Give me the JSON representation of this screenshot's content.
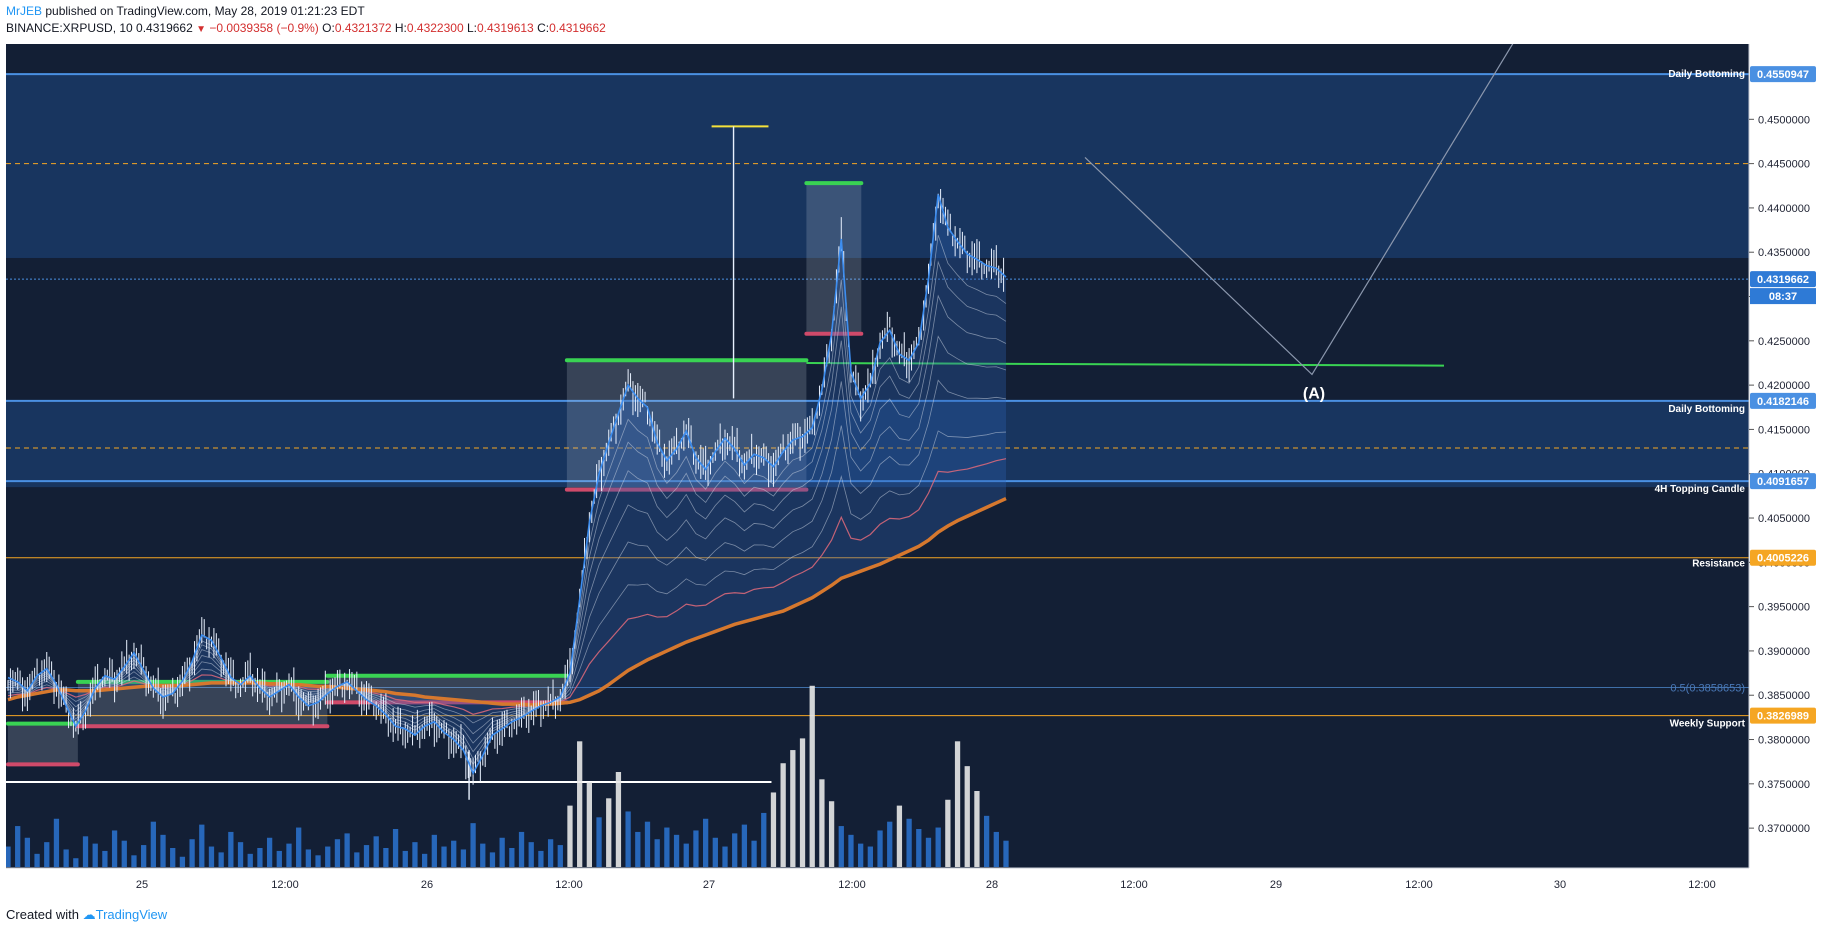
{
  "header": {
    "author": "MrJEB",
    "published": "published on TradingView.com, May 28, 2019 01:21:23 EDT",
    "symbol": "BINANCE:XRPUSD, 10",
    "last": "0.4319662",
    "arrow": "▼",
    "change": "−0.0039358 (−0.9%)",
    "o_label": "O:",
    "o_val": "0.4321372",
    "h_label": "H:",
    "h_val": "0.4322300",
    "l_label": "L:",
    "l_val": "0.4319613",
    "c_label": "C:",
    "c_val": "0.4319662"
  },
  "footer": {
    "created": "Created with",
    "brand": "TradingView"
  },
  "colors": {
    "background": "#131f35",
    "zone": "#1a3a66",
    "level_line": "#4a90e2",
    "orange_line": "#f5a623",
    "green": "#39d353",
    "red": "#d04a6a",
    "ema": "#d6782e",
    "volume": "#2a6fc9",
    "volume_spike": "#e8e8e8"
  },
  "chart_data": {
    "type": "line",
    "ylim": [
      0.3655,
      0.4585
    ],
    "x_tick_labels": [
      "25",
      "12:00",
      "26",
      "12:00",
      "27",
      "12:00",
      "28",
      "12:00",
      "29",
      "12:00",
      "30",
      "12:00"
    ],
    "y_tick_values": [
      0.37,
      0.375,
      0.38,
      0.385,
      0.39,
      0.395,
      0.4,
      0.405,
      0.41,
      0.415,
      0.42,
      0.425,
      0.43,
      0.435,
      0.44,
      0.445,
      0.45
    ],
    "y_tick_labels": [
      "0.3700000",
      "0.3750000",
      "0.3800000",
      "0.3850000",
      "0.3900000",
      "0.3950000",
      "0.4000000",
      "0.4050000",
      "0.4100000",
      "0.4150000",
      "0.4200000",
      "0.4250000",
      "0.4300000",
      "0.4350000",
      "0.4400000",
      "0.4450000",
      "0.4500000"
    ],
    "levels": [
      {
        "label": "Daily Bottoming",
        "value": 0.4550947,
        "tag": "0.4550947"
      },
      {
        "label": "Daily Bottoming",
        "value": 0.4182146,
        "tag": "0.4182146"
      },
      {
        "label": "4H Topping Candle",
        "value": 0.4091657,
        "tag": "0.4091657"
      },
      {
        "label": "Resistance",
        "value": 0.4005226,
        "tag": "0.4005226"
      },
      {
        "label": "Weekly Support",
        "value": 0.3826989,
        "tag": "0.3826989"
      }
    ],
    "fib_label": "0.5(0.3858653)",
    "fib_value": 0.3858653,
    "current_price_tag": "0.4319662",
    "countdown": "08:37",
    "wave_label": "(A)",
    "price_series": [
      0.387,
      0.3865,
      0.3855,
      0.3872,
      0.388,
      0.3862,
      0.3838,
      0.3815,
      0.3832,
      0.3858,
      0.3872,
      0.3868,
      0.3882,
      0.3898,
      0.3878,
      0.3858,
      0.3848,
      0.3852,
      0.3866,
      0.3888,
      0.3918,
      0.3912,
      0.3892,
      0.387,
      0.3862,
      0.3872,
      0.3858,
      0.3848,
      0.3855,
      0.3862,
      0.3848,
      0.3838,
      0.3842,
      0.3852,
      0.386,
      0.3865,
      0.3855,
      0.3845,
      0.3838,
      0.3828,
      0.3815,
      0.3812,
      0.3805,
      0.3815,
      0.382,
      0.3808,
      0.38,
      0.3788,
      0.3762,
      0.3782,
      0.3805,
      0.3812,
      0.382,
      0.3825,
      0.3832,
      0.3838,
      0.3842,
      0.3848,
      0.3875,
      0.3958,
      0.4045,
      0.41,
      0.4135,
      0.4168,
      0.42,
      0.4185,
      0.4175,
      0.4135,
      0.4115,
      0.4128,
      0.4148,
      0.4118,
      0.4105,
      0.4125,
      0.414,
      0.4128,
      0.411,
      0.4122,
      0.4118,
      0.4108,
      0.4125,
      0.4138,
      0.4142,
      0.4152,
      0.4195,
      0.4258,
      0.4365,
      0.4215,
      0.4185,
      0.4202,
      0.4248,
      0.4262,
      0.4235,
      0.4228,
      0.4248,
      0.432,
      0.4415,
      0.4378,
      0.4362,
      0.4348,
      0.4342,
      0.4335,
      0.4332,
      0.4322
    ],
    "ema_series": [
      0.3845,
      0.3848,
      0.385,
      0.3852,
      0.3854,
      0.3856,
      0.3856,
      0.3855,
      0.3855,
      0.3855,
      0.3856,
      0.3857,
      0.3858,
      0.3859,
      0.386,
      0.3861,
      0.3861,
      0.3861,
      0.3861,
      0.3862,
      0.3863,
      0.3864,
      0.3864,
      0.3864,
      0.3864,
      0.3864,
      0.3864,
      0.3863,
      0.3863,
      0.3862,
      0.3862,
      0.3861,
      0.386,
      0.386,
      0.3859,
      0.3858,
      0.3857,
      0.3856,
      0.3855,
      0.3854,
      0.3852,
      0.3851,
      0.385,
      0.3848,
      0.3847,
      0.3846,
      0.3845,
      0.3844,
      0.3843,
      0.3842,
      0.3841,
      0.384,
      0.384,
      0.384,
      0.3839,
      0.384,
      0.384,
      0.3841,
      0.3842,
      0.3845,
      0.385,
      0.3855,
      0.3862,
      0.387,
      0.3878,
      0.3884,
      0.389,
      0.3895,
      0.39,
      0.3905,
      0.391,
      0.3914,
      0.3918,
      0.3922,
      0.3926,
      0.393,
      0.3933,
      0.3936,
      0.3939,
      0.3942,
      0.3945,
      0.395,
      0.3955,
      0.396,
      0.3967,
      0.3974,
      0.3982,
      0.3986,
      0.399,
      0.3994,
      0.3998,
      0.4003,
      0.4008,
      0.4013,
      0.4018,
      0.4025,
      0.4034,
      0.4041,
      0.4047,
      0.4052,
      0.4057,
      0.4062,
      0.4067,
      0.4072
    ],
    "volume_series": [
      14,
      28,
      20,
      9,
      17,
      33,
      12,
      6,
      21,
      16,
      11,
      25,
      18,
      8,
      15,
      31,
      22,
      13,
      7,
      19,
      29,
      14,
      10,
      24,
      17,
      9,
      13,
      20,
      11,
      16,
      27,
      12,
      8,
      14,
      19,
      23,
      10,
      15,
      21,
      13,
      26,
      11,
      17,
      9,
      22,
      14,
      18,
      12,
      30,
      16,
      10,
      20,
      13,
      24,
      17,
      11,
      19,
      15,
      42,
      86,
      58,
      34,
      47,
      65,
      38,
      24,
      31,
      19,
      27,
      22,
      16,
      25,
      33,
      20,
      14,
      23,
      29,
      18,
      37,
      51,
      71,
      80,
      88,
      124,
      60,
      45,
      28,
      22,
      16,
      14,
      25,
      31,
      42,
      33,
      26,
      20,
      27,
      46,
      86,
      69,
      52,
      35,
      24,
      18
    ]
  }
}
